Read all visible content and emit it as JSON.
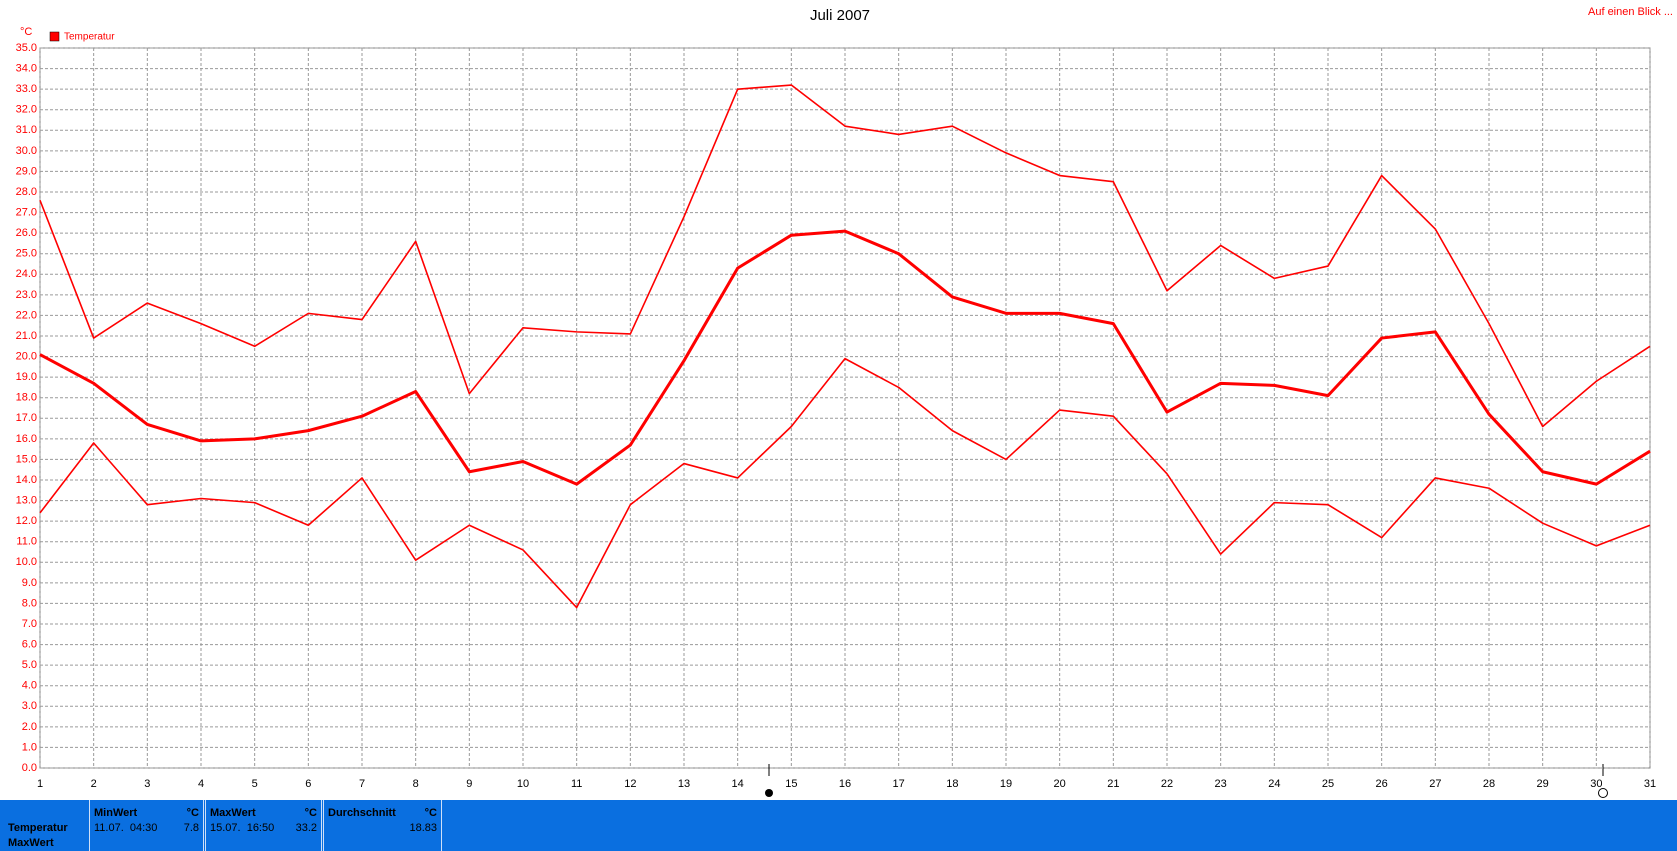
{
  "chart_data": {
    "type": "line",
    "title": "Juli 2007",
    "y_unit": "°C",
    "legend": "Temperatur",
    "link": "Auf einen Blick ...",
    "grid": true,
    "x": [
      1,
      2,
      3,
      4,
      5,
      6,
      7,
      8,
      9,
      10,
      11,
      12,
      13,
      14,
      15,
      16,
      17,
      18,
      19,
      20,
      21,
      22,
      23,
      24,
      25,
      26,
      27,
      28,
      29,
      30,
      31
    ],
    "xlim": [
      1,
      31
    ],
    "xticks": [
      1,
      2,
      3,
      4,
      5,
      6,
      7,
      8,
      9,
      10,
      11,
      12,
      13,
      14,
      15,
      16,
      17,
      18,
      19,
      20,
      21,
      22,
      23,
      24,
      25,
      26,
      27,
      28,
      29,
      30,
      31
    ],
    "ylim": [
      0,
      35
    ],
    "yticks": [
      {
        "value": 0,
        "label": "0.0"
      },
      {
        "value": 1,
        "label": "1.0"
      },
      {
        "value": 2,
        "label": "2.0"
      },
      {
        "value": 3,
        "label": "3.0"
      },
      {
        "value": 4,
        "label": "4.0"
      },
      {
        "value": 5,
        "label": "5.0"
      },
      {
        "value": 6,
        "label": "6.0"
      },
      {
        "value": 7,
        "label": "7.0"
      },
      {
        "value": 8,
        "label": "8.0"
      },
      {
        "value": 9,
        "label": "9.0"
      },
      {
        "value": 10,
        "label": "10.0"
      },
      {
        "value": 11,
        "label": "11.0"
      },
      {
        "value": 12,
        "label": "12.0"
      },
      {
        "value": 13,
        "label": "13.0"
      },
      {
        "value": 14,
        "label": "14.0"
      },
      {
        "value": 15,
        "label": "15.0"
      },
      {
        "value": 16,
        "label": "16.0"
      },
      {
        "value": 17,
        "label": "17.0"
      },
      {
        "value": 18,
        "label": "18.0"
      },
      {
        "value": 19,
        "label": "19.0"
      },
      {
        "value": 20,
        "label": "20.0"
      },
      {
        "value": 21,
        "label": "21.0"
      },
      {
        "value": 22,
        "label": "22.0"
      },
      {
        "value": 23,
        "label": "23.0"
      },
      {
        "value": 24,
        "label": "24.0"
      },
      {
        "value": 25,
        "label": "25.0"
      },
      {
        "value": 26,
        "label": "26.0"
      },
      {
        "value": 27,
        "label": "27.0"
      },
      {
        "value": 28,
        "label": "28.0"
      },
      {
        "value": 29,
        "label": "29.0"
      },
      {
        "value": 30,
        "label": "30.0"
      },
      {
        "value": 31,
        "label": "31.0"
      },
      {
        "value": 32,
        "label": "32.0"
      },
      {
        "value": 33,
        "label": "33.0"
      },
      {
        "value": 34,
        "label": "34.0"
      },
      {
        "value": 35,
        "label": "35.0"
      }
    ],
    "series": [
      {
        "color": "#ff0000",
        "values": [
          27.6,
          20.9,
          22.6,
          21.6,
          20.5,
          22.1,
          21.8,
          25.6,
          18.2,
          21.4,
          21.2,
          21.1,
          26.8,
          33.0,
          33.2,
          31.2,
          30.8,
          31.2,
          29.9,
          28.8,
          28.5,
          23.2,
          25.4,
          23.8,
          24.4,
          28.8,
          26.2,
          21.6,
          16.6,
          18.8,
          20.5
        ]
      },
      {
        "color": "#ff0000",
        "values": [
          20.1,
          18.7,
          16.7,
          15.9,
          16.0,
          16.4,
          17.1,
          18.3,
          14.4,
          14.9,
          13.8,
          15.7,
          19.8,
          24.3,
          25.9,
          26.1,
          25.0,
          22.9,
          22.1,
          22.1,
          21.6,
          17.3,
          18.7,
          18.6,
          18.1,
          20.9,
          21.2,
          17.2,
          14.4,
          13.8,
          15.4
        ]
      },
      {
        "color": "#ff0000",
        "values": [
          12.4,
          15.8,
          12.8,
          13.1,
          12.9,
          11.8,
          14.1,
          10.1,
          11.8,
          10.6,
          7.8,
          12.8,
          14.8,
          14.1,
          16.6,
          19.9,
          18.5,
          16.4,
          15.0,
          17.4,
          17.1,
          14.3,
          10.4,
          12.9,
          12.8,
          11.2,
          14.1,
          13.6,
          11.9,
          10.8,
          11.8
        ]
      }
    ]
  },
  "summary": {
    "row_labels": [
      "Temperatur",
      "MaxWert"
    ],
    "columns": [
      {
        "header": "MinWert",
        "unit": "°C",
        "time": "11.07.  04:30",
        "value": "7.8"
      },
      {
        "header": "MaxWert",
        "unit": "°C",
        "time": "15.07.  16:50",
        "value": "33.2"
      },
      {
        "header": "Durchschnitt",
        "unit": "°C",
        "value": "18.83"
      }
    ]
  }
}
